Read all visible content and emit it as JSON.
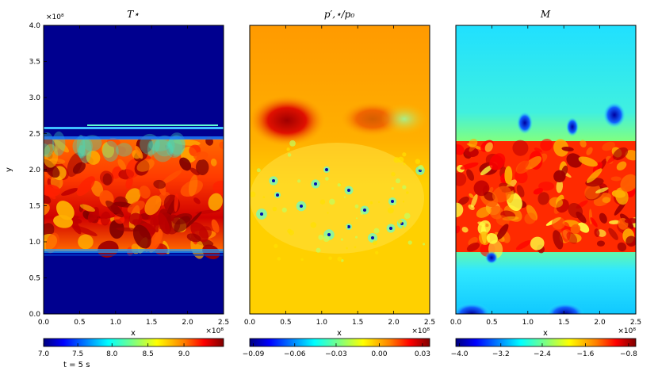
{
  "figure": {
    "time_label": "t = 5 s",
    "panels": [
      {
        "id": "temperature",
        "title": "T⋆",
        "x_label": "x",
        "y_label": "y",
        "x_ticks": [
          "0.0",
          "0.5",
          "1.0",
          "1.5",
          "2.0",
          "2.5"
        ],
        "y_ticks": [
          "0.0",
          "0.5",
          "1.0",
          "1.5",
          "2.0",
          "2.5",
          "3.0",
          "3.5",
          "4.0"
        ],
        "x_offset": "×10⁸",
        "y_offset": "×10⁸",
        "colorbar_ticks": [
          "7.0",
          "7.5",
          "8.0",
          "8.5",
          "9.0"
        ]
      },
      {
        "id": "pressure",
        "title": "p′,⋆/p₀",
        "x_label": "x",
        "x_ticks": [
          "0.0",
          "0.5",
          "1.0",
          "1.5",
          "2.0",
          "2.5"
        ],
        "x_offset": "×10⁸",
        "colorbar_ticks": [
          "−0.09",
          "−0.06",
          "−0.03",
          "0.00",
          "0.03"
        ]
      },
      {
        "id": "mach",
        "title": "M",
        "x_label": "x",
        "x_ticks": [
          "0.0",
          "0.5",
          "1.0",
          "1.5",
          "2.0",
          "2.5"
        ],
        "x_offset": "×10⁸",
        "colorbar_ticks": [
          "−4.0",
          "−3.2",
          "−2.4",
          "−1.6",
          "−0.8"
        ]
      }
    ]
  },
  "colors": {
    "jet_dark_blue": "#00007f",
    "jet_blue": "#0000ff",
    "jet_cyan": "#00ffff",
    "jet_yellow": "#ffff00",
    "jet_orange": "#ff7f00",
    "jet_red": "#ff0000",
    "jet_dark_red": "#7f0000"
  }
}
